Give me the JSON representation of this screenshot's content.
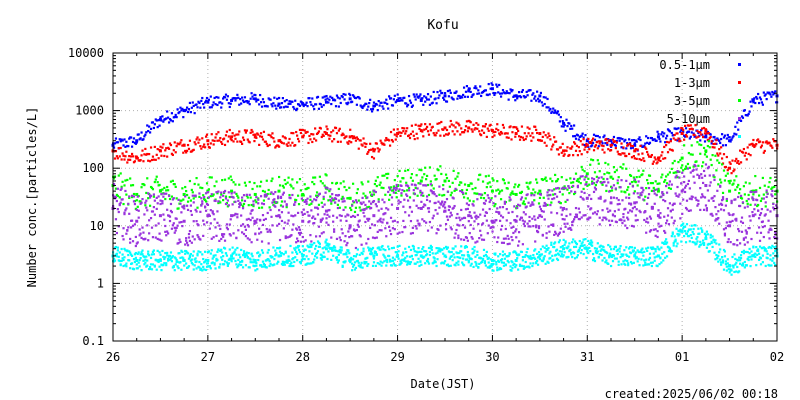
{
  "chart_data": {
    "type": "scatter",
    "title": "Kofu",
    "xlabel": "Date(JST)",
    "ylabel": "Number conc.[particles/L]",
    "yscale": "log",
    "ylim": [
      0.1,
      10000
    ],
    "xlim": [
      "2025-05-26 00:00",
      "2025-06-02 00:00"
    ],
    "x_ticks": [
      "26",
      "27",
      "28",
      "29",
      "30",
      "31",
      "01",
      "02"
    ],
    "y_ticks": [
      "0.1",
      "1",
      "10",
      "100",
      "1000",
      "10000"
    ],
    "legend_position": "top-right",
    "grid": true,
    "created": "created:2025/06/02 00:18",
    "x": [
      "2025-05-26 00:00",
      "2025-05-26 06:00",
      "2025-05-26 12:00",
      "2025-05-26 18:00",
      "2025-05-27 00:00",
      "2025-05-27 06:00",
      "2025-05-27 12:00",
      "2025-05-27 18:00",
      "2025-05-28 00:00",
      "2025-05-28 06:00",
      "2025-05-28 12:00",
      "2025-05-28 18:00",
      "2025-05-29 00:00",
      "2025-05-29 06:00",
      "2025-05-29 12:00",
      "2025-05-29 18:00",
      "2025-05-30 00:00",
      "2025-05-30 06:00",
      "2025-05-30 12:00",
      "2025-05-30 18:00",
      "2025-05-31 00:00",
      "2025-05-31 06:00",
      "2025-05-31 12:00",
      "2025-05-31 18:00",
      "2025-06-01 00:00",
      "2025-06-01 06:00",
      "2025-06-01 12:00",
      "2025-06-01 18:00",
      "2025-06-02 00:00"
    ],
    "series": [
      {
        "name": "0.5-1μm",
        "color": "#0000ff",
        "values": [
          250,
          300,
          700,
          1000,
          1400,
          1500,
          1600,
          1300,
          1300,
          1400,
          1600,
          1200,
          1500,
          1500,
          1800,
          2200,
          2400,
          1800,
          1800,
          600,
          300,
          300,
          250,
          350,
          400,
          350,
          300,
          1500,
          1800
        ]
      },
      {
        "name": "1-3μm",
        "color": "#ff0000",
        "values": [
          200,
          150,
          200,
          250,
          300,
          350,
          350,
          300,
          350,
          400,
          350,
          200,
          400,
          450,
          500,
          500,
          450,
          400,
          400,
          200,
          250,
          250,
          200,
          150,
          400,
          450,
          100,
          250,
          250
        ]
      },
      {
        "name": "3-5μm",
        "color": "#00ff00",
        "values": [
          50,
          35,
          40,
          35,
          40,
          40,
          35,
          40,
          35,
          45,
          30,
          40,
          50,
          60,
          60,
          50,
          40,
          35,
          40,
          45,
          80,
          70,
          60,
          40,
          150,
          200,
          40,
          40,
          40
        ]
      },
      {
        "name": "5-10μm",
        "color": "#9933dd",
        "values": [
          20,
          12,
          15,
          12,
          15,
          15,
          12,
          15,
          12,
          18,
          10,
          15,
          20,
          20,
          18,
          15,
          12,
          12,
          15,
          20,
          30,
          25,
          25,
          15,
          40,
          50,
          10,
          15,
          15
        ]
      },
      {
        "name": "",
        "color": "#00ffff",
        "values": [
          3,
          2.5,
          2.5,
          2.5,
          2.5,
          3,
          2.5,
          3,
          3,
          4,
          2.5,
          3,
          3,
          3,
          3,
          3,
          2.5,
          2.5,
          3,
          4,
          4,
          3,
          3,
          3,
          8,
          6,
          2,
          3,
          3
        ]
      }
    ]
  }
}
